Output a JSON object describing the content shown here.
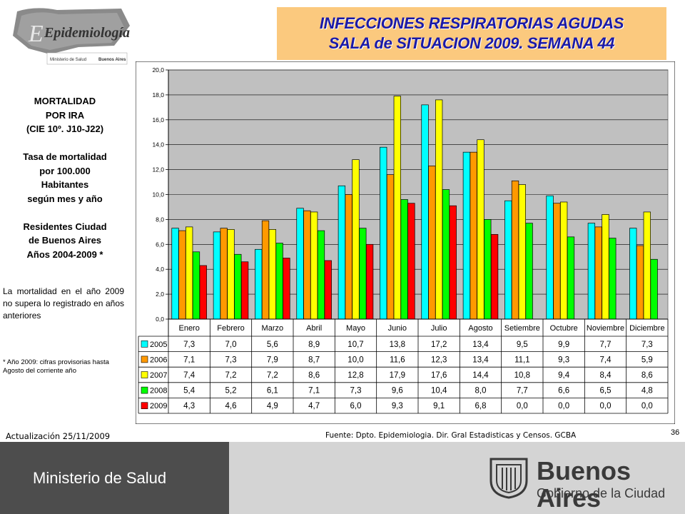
{
  "header": {
    "logo_text": "Epidemiología",
    "logo_sub1": "Ministerio de Salud",
    "logo_sub2": "Buenos Aires",
    "title_line1": "INFECCIONES RESPIRATORIAS AGUDAS",
    "title_line2": "SALA de SITUACION 2009. SEMANA 44"
  },
  "sidebar": {
    "lines": [
      "MORTALIDAD",
      "POR IRA",
      "(CIE 10º. J10-J22)",
      "",
      "Tasa de mortalidad",
      "por 100.000",
      "Habitantes",
      "según mes y año",
      "",
      "Residentes Ciudad",
      "de Buenos Aires",
      "Años 2004-2009 *"
    ],
    "note": "La mortalidad en el año 2009 no supera lo registrado en años anteriores",
    "footnote": "* Año 2009: cifras provisorias hasta Agosto del corriente año"
  },
  "footer": {
    "update": "Actualización 25/11/2009",
    "source": "Fuente: Dpto. Epidemiologia. Dir. Gral Estadisticas y Censos. GCBA",
    "page": "36",
    "ministry": "Ministerio de Salud",
    "city_name": "Buenos Aires",
    "city_sub": "Gobierno de la Ciudad"
  },
  "chart_data": {
    "type": "bar",
    "categories": [
      "Enero",
      "Febrero",
      "Marzo",
      "Abril",
      "Mayo",
      "Junio",
      "Julio",
      "Agosto",
      "Setiembre",
      "Octubre",
      "Noviembre",
      "Diciembre"
    ],
    "series": [
      {
        "name": "2005",
        "color": "#00ffff",
        "values": [
          7.3,
          7.0,
          5.6,
          8.9,
          10.7,
          13.8,
          17.2,
          13.4,
          9.5,
          9.9,
          7.7,
          7.3
        ]
      },
      {
        "name": "2006",
        "color": "#ff9900",
        "values": [
          7.1,
          7.3,
          7.9,
          8.7,
          10.0,
          11.6,
          12.3,
          13.4,
          11.1,
          9.3,
          7.4,
          5.9
        ]
      },
      {
        "name": "2007",
        "color": "#ffff00",
        "values": [
          7.4,
          7.2,
          7.2,
          8.6,
          12.8,
          17.9,
          17.6,
          14.4,
          10.8,
          9.4,
          8.4,
          8.6
        ]
      },
      {
        "name": "2008",
        "color": "#00ff00",
        "values": [
          5.4,
          5.2,
          6.1,
          7.1,
          7.3,
          9.6,
          10.4,
          8.0,
          7.7,
          6.6,
          6.5,
          4.8
        ]
      },
      {
        "name": "2009",
        "color": "#ff0000",
        "values": [
          4.3,
          4.6,
          4.9,
          4.7,
          6.0,
          9.3,
          9.1,
          6.8,
          0.0,
          0.0,
          0.0,
          0.0
        ]
      }
    ],
    "yticks": [
      "0,0",
      "2,0",
      "4,0",
      "6,0",
      "8,0",
      "10,0",
      "12,0",
      "14,0",
      "16,0",
      "18,0",
      "20,0"
    ],
    "ylim": [
      0,
      20
    ],
    "table_values": [
      [
        "7,3",
        "7,0",
        "5,6",
        "8,9",
        "10,7",
        "13,8",
        "17,2",
        "13,4",
        "9,5",
        "9,9",
        "7,7",
        "7,3"
      ],
      [
        "7,1",
        "7,3",
        "7,9",
        "8,7",
        "10,0",
        "11,6",
        "12,3",
        "13,4",
        "11,1",
        "9,3",
        "7,4",
        "5,9"
      ],
      [
        "7,4",
        "7,2",
        "7,2",
        "8,6",
        "12,8",
        "17,9",
        "17,6",
        "14,4",
        "10,8",
        "9,4",
        "8,4",
        "8,6"
      ],
      [
        "5,4",
        "5,2",
        "6,1",
        "7,1",
        "7,3",
        "9,6",
        "10,4",
        "8,0",
        "7,7",
        "6,6",
        "6,5",
        "4,8"
      ],
      [
        "4,3",
        "4,6",
        "4,9",
        "4,7",
        "6,0",
        "9,3",
        "9,1",
        "6,8",
        "0,0",
        "0,0",
        "0,0",
        "0,0"
      ]
    ],
    "plot_bg": "#c0c0c0",
    "grid": true,
    "legend": "data table below chart"
  }
}
